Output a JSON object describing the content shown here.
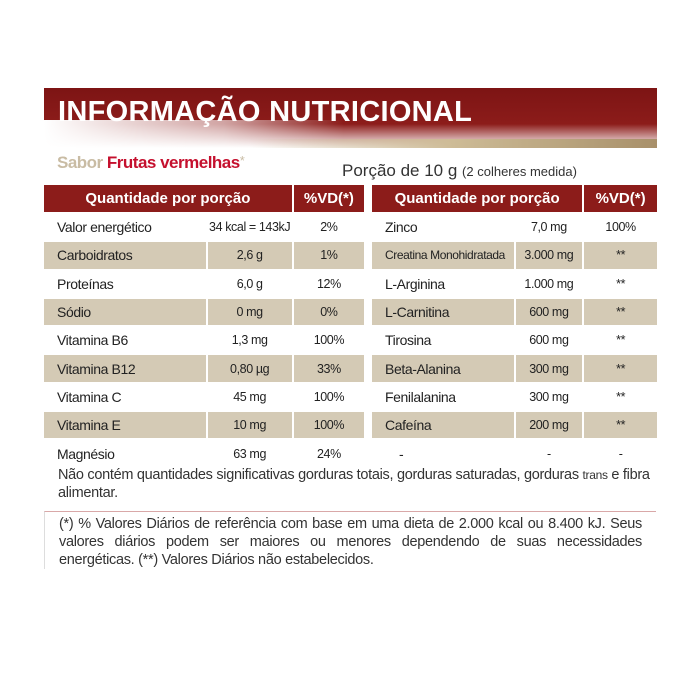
{
  "title": "INFORMAÇÃO NUTRICIONAL",
  "flavor": {
    "prefix": "Sabor",
    "name": "Frutas vermelhas",
    "mark": "*"
  },
  "portion": {
    "main": "Porção de 10 g",
    "detail": "(2 colheres medida)"
  },
  "headers": {
    "qty": "Quantidade por porção",
    "vd": "%VD(*)"
  },
  "left": [
    {
      "name": "Valor energético",
      "value": "34 kcal = 143kJ",
      "vd": "2%"
    },
    {
      "name": "Carboidratos",
      "value": "2,6 g",
      "vd": "1%"
    },
    {
      "name": "Proteínas",
      "value": "6,0 g",
      "vd": "12%"
    },
    {
      "name": "Sódio",
      "value": "0 mg",
      "vd": "0%"
    },
    {
      "name": "Vitamina B6",
      "value": "1,3 mg",
      "vd": "100%"
    },
    {
      "name": "Vitamina B12",
      "value": "0,80 µg",
      "vd": "33%"
    },
    {
      "name": "Vitamina C",
      "value": "45 mg",
      "vd": "100%"
    },
    {
      "name": "Vitamina E",
      "value": "10 mg",
      "vd": "100%"
    },
    {
      "name": "Magnésio",
      "value": "63 mg",
      "vd": "24%"
    }
  ],
  "right": [
    {
      "name": "Zinco",
      "value": "7,0 mg",
      "vd": "100%"
    },
    {
      "name": "Creatina Monohidratada",
      "value": "3.000 mg",
      "vd": "**"
    },
    {
      "name": "L-Arginina",
      "value": "1.000 mg",
      "vd": "**"
    },
    {
      "name": "L-Carnitina",
      "value": "600 mg",
      "vd": "**"
    },
    {
      "name": "Tirosina",
      "value": "600 mg",
      "vd": "**"
    },
    {
      "name": "Beta-Alanina",
      "value": "300 mg",
      "vd": "**"
    },
    {
      "name": "Fenilalanina",
      "value": "300 mg",
      "vd": "**"
    },
    {
      "name": "Cafeína",
      "value": "200 mg",
      "vd": "**"
    },
    {
      "name": "-",
      "value": "-",
      "vd": "-"
    }
  ],
  "note": {
    "text": "Não contém quantidades significativas gorduras totais, gorduras saturadas, gorduras",
    "trans": "trans",
    "rest": " e fibra alimentar."
  },
  "footnote": "(*) % Valores Diários de referência com base em uma dieta de 2.000 kcal ou 8.400 kJ. Seus valores diários podem ser maiores ou menores dependendo de suas necessidades energéticas. (**) Valores Diários não estabelecidos."
}
